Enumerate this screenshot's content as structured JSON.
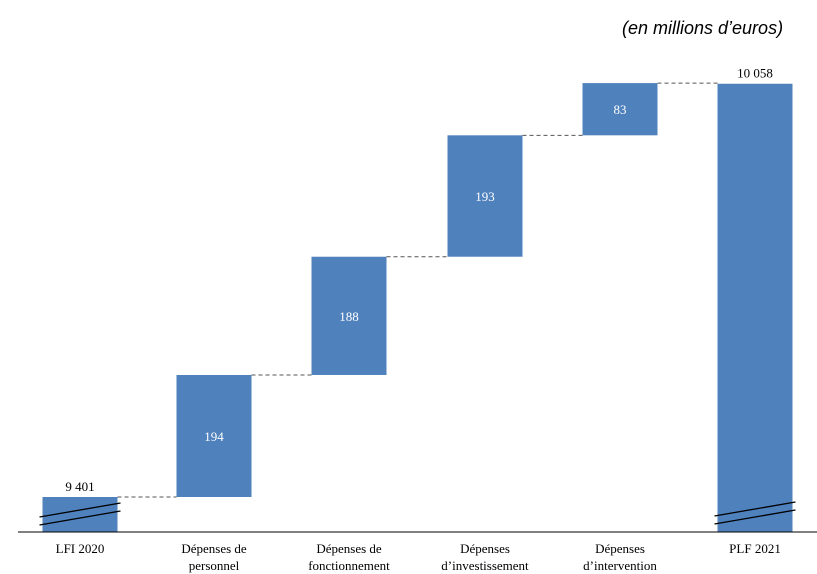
{
  "unit_note": "(en millions d’euros)",
  "chart_data": {
    "type": "waterfall",
    "categories": [
      [
        "LFI 2020"
      ],
      [
        "Dépenses de",
        "personnel"
      ],
      [
        "Dépenses de",
        "fonctionnement"
      ],
      [
        "Dépenses",
        "d’investissement"
      ],
      [
        "Dépenses",
        "d’intervention"
      ],
      [
        "PLF 2021"
      ]
    ],
    "values": [
      9401,
      194,
      188,
      193,
      83,
      10058
    ],
    "kinds": [
      "total",
      "delta",
      "delta",
      "delta",
      "delta",
      "total"
    ],
    "value_labels": [
      "9 401",
      "194",
      "188",
      "193",
      "83",
      "10 058"
    ],
    "axis_break": true,
    "colors": {
      "bar": "#4f81bd",
      "connector": "#555555",
      "axis": "#000000"
    },
    "title": "",
    "xlabel": "",
    "ylabel": ""
  }
}
